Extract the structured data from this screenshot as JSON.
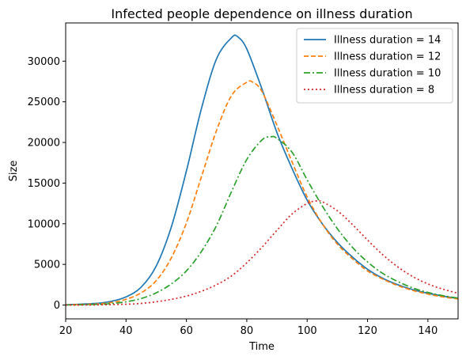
{
  "chart_data": {
    "type": "line",
    "title": "Infected people dependence on illness duration",
    "xlabel": "Time",
    "ylabel": "Size",
    "xlim": [
      20,
      150
    ],
    "ylim": [
      -1700,
      34700
    ],
    "xticks": [
      20,
      40,
      60,
      80,
      100,
      120,
      140
    ],
    "yticks": [
      0,
      5000,
      10000,
      15000,
      20000,
      25000,
      30000
    ],
    "xtick_labels": [
      "20",
      "40",
      "60",
      "80",
      "100",
      "120",
      "140"
    ],
    "ytick_labels": [
      "0",
      "5000",
      "10000",
      "15000",
      "20000",
      "25000",
      "30000"
    ],
    "grid": false,
    "legend_position": "top-right",
    "series": [
      {
        "name": "Illness duration = 14",
        "color": "#1f77b4",
        "style": "solid",
        "x": [
          20,
          30,
          35,
          40,
          45,
          50,
          55,
          60,
          65,
          70,
          75,
          77,
          80,
          85,
          90,
          95,
          100,
          105,
          110,
          115,
          120,
          125,
          130,
          135,
          140,
          145,
          150
        ],
        "y": [
          30,
          200,
          450,
          1000,
          2200,
          4800,
          9600,
          16500,
          24200,
          30300,
          32900,
          33000,
          31500,
          26600,
          21200,
          16800,
          12900,
          10000,
          7700,
          5900,
          4400,
          3300,
          2500,
          1900,
          1450,
          1100,
          800
        ]
      },
      {
        "name": "Illness duration = 12",
        "color": "#ff7f0e",
        "style": "dashed",
        "x": [
          20,
          30,
          35,
          40,
          45,
          50,
          55,
          60,
          65,
          70,
          75,
          80,
          82,
          85,
          90,
          95,
          100,
          105,
          110,
          115,
          120,
          125,
          130,
          135,
          140,
          145,
          150
        ],
        "y": [
          20,
          130,
          300,
          700,
          1500,
          3000,
          5800,
          10100,
          15800,
          21500,
          25800,
          27400,
          27400,
          26300,
          22100,
          17600,
          13300,
          10000,
          7500,
          5700,
          4200,
          3200,
          2400,
          1800,
          1350,
          1000,
          750
        ]
      },
      {
        "name": "Illness duration = 10",
        "color": "#2ca02c",
        "style": "dashdot",
        "x": [
          20,
          30,
          35,
          40,
          45,
          50,
          55,
          60,
          65,
          70,
          75,
          80,
          85,
          88,
          90,
          95,
          100,
          105,
          110,
          115,
          120,
          125,
          130,
          135,
          140,
          145,
          150
        ],
        "y": [
          10,
          80,
          180,
          400,
          800,
          1500,
          2600,
          4200,
          6600,
          9800,
          14000,
          17900,
          20300,
          20700,
          20500,
          18800,
          15400,
          12200,
          9400,
          7100,
          5300,
          3900,
          2900,
          2100,
          1550,
          1150,
          850
        ]
      },
      {
        "name": "Illness duration = 8",
        "color": "#d62728",
        "style": "dotted",
        "x": [
          20,
          30,
          40,
          45,
          50,
          55,
          60,
          65,
          70,
          75,
          80,
          85,
          90,
          95,
          100,
          103,
          105,
          110,
          115,
          120,
          125,
          130,
          135,
          140,
          145,
          150
        ],
        "y": [
          0,
          20,
          100,
          200,
          400,
          700,
          1100,
          1700,
          2500,
          3600,
          5200,
          7100,
          9200,
          11200,
          12500,
          12800,
          12700,
          11600,
          9900,
          8000,
          6200,
          4700,
          3500,
          2600,
          1950,
          1450
        ]
      }
    ]
  }
}
